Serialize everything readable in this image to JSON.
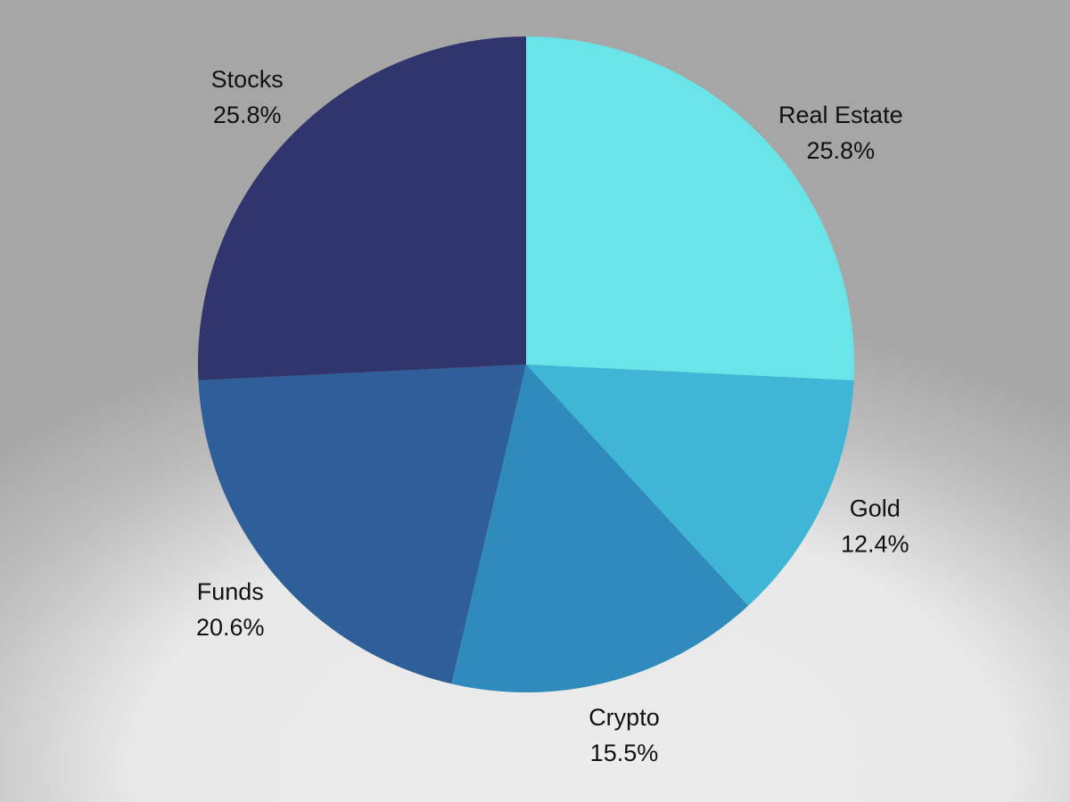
{
  "chart_data": {
    "type": "pie",
    "categories": [
      "Real Estate",
      "Gold",
      "Crypto",
      "Funds",
      "Stocks"
    ],
    "values": [
      25.8,
      12.4,
      15.5,
      20.6,
      25.8
    ],
    "value_labels": [
      "25.8%",
      "12.4%",
      "15.5%",
      "20.6%",
      "25.8%"
    ],
    "colors": [
      "#69e4e8",
      "#40b6d6",
      "#2e8bbb",
      "#2e5f99",
      "#30356d"
    ]
  }
}
